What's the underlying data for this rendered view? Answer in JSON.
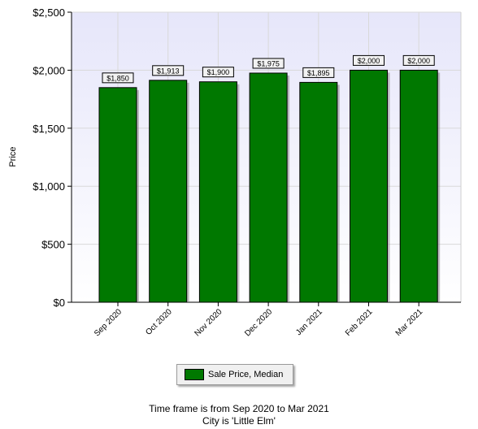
{
  "chart_data": {
    "type": "bar",
    "categories": [
      "Sep 2020",
      "Oct 2020",
      "Nov 2020",
      "Dec 2020",
      "Jan 2021",
      "Feb 2021",
      "Mar 2021"
    ],
    "series": [
      {
        "name": "Sale Price, Median",
        "values": [
          1850,
          1913,
          1900,
          1975,
          1895,
          2000,
          2000
        ]
      }
    ],
    "data_labels": [
      "$1,850",
      "$1,913",
      "$1,900",
      "$1,975",
      "$1,895",
      "$2,000",
      "$2,000"
    ],
    "ylabel": "Price",
    "ylim": [
      0,
      2500
    ],
    "yticks": [
      0,
      500,
      1000,
      1500,
      2000,
      2500
    ],
    "ytick_labels": [
      "$0",
      "$500",
      "$1,000",
      "$1,500",
      "$2,000",
      "$2,500"
    ],
    "grid": true,
    "legend_position": "bottom-center",
    "colors": {
      "bar": "#007800",
      "plot_top": "#e6e6fa",
      "plot_bottom": "#ffffff"
    }
  },
  "legend": {
    "label": "Sale Price, Median"
  },
  "footer": {
    "line1": "Time frame is from Sep 2020 to Mar 2021",
    "line2": "City is 'Little Elm'"
  }
}
